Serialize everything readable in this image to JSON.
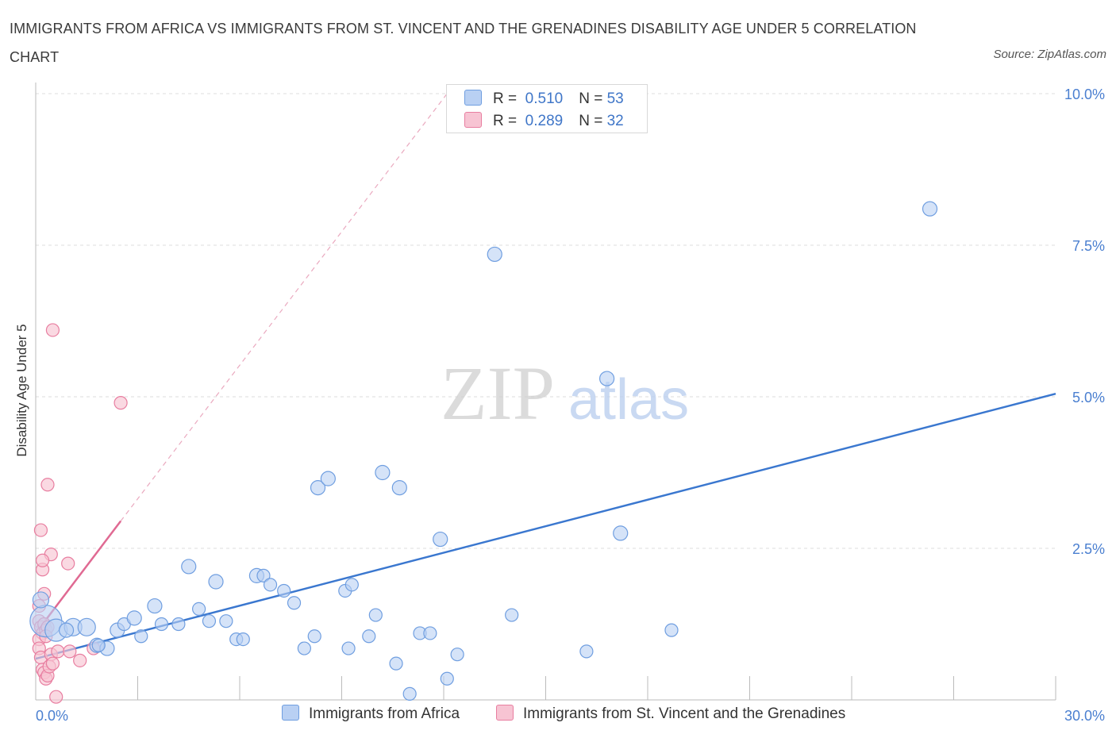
{
  "title": "IMMIGRANTS FROM AFRICA VS IMMIGRANTS FROM ST. VINCENT AND THE GRENADINES DISABILITY AGE UNDER 5 CORRELATION CHART",
  "source": "Source: ZipAtlas.com",
  "colors": {
    "blue_fill": "#b9d0f3",
    "blue_stroke": "#6f9ee0",
    "blue_line": "#3a77cf",
    "pink_fill": "#f7c4d3",
    "pink_stroke": "#e87ea0",
    "pink_line": "#e06a93",
    "grid": "#dedede",
    "tick_text": "#4a7fd0"
  },
  "legend": {
    "rows": [
      {
        "r_label": "R =",
        "r_value": "0.510",
        "n_label": "N =",
        "n_value": "53",
        "color": "#b9d0f3"
      },
      {
        "r_label": "R =",
        "r_value": "0.289",
        "n_label": "N =",
        "n_value": "32",
        "color": "#f7c4d3"
      }
    ]
  },
  "bottom_legend": {
    "africa": "Immigrants from Africa",
    "svg": "Immigrants from St. Vincent and the Grenadines"
  },
  "watermark": {
    "zip": "ZIP",
    "atlas": "atlas"
  },
  "chart_data": {
    "type": "scatter",
    "title": "IMMIGRANTS FROM AFRICA VS IMMIGRANTS FROM ST. VINCENT AND THE GRENADINES DISABILITY AGE UNDER 5 CORRELATION CHART",
    "xlabel": "",
    "ylabel": "Disability Age Under 5",
    "xlim": [
      0,
      30
    ],
    "ylim": [
      0,
      10
    ],
    "x_tick_labels": [
      {
        "value": 0,
        "label": "0.0%"
      },
      {
        "value": 30,
        "label": "30.0%"
      }
    ],
    "y_tick_labels": [
      {
        "value": 2.5,
        "label": "2.5%"
      },
      {
        "value": 5.0,
        "label": "5.0%"
      },
      {
        "value": 7.5,
        "label": "7.5%"
      },
      {
        "value": 10.0,
        "label": "10.0%"
      }
    ],
    "grid": true,
    "legend_placement": "top-center",
    "series": [
      {
        "name": "Immigrants from Africa",
        "R": 0.51,
        "N": 53,
        "trend": {
          "x": [
            0,
            30
          ],
          "y": [
            0.68,
            5.05
          ]
        },
        "points": [
          {
            "x": 0.3,
            "y": 1.3,
            "s": 20
          },
          {
            "x": 0.6,
            "y": 1.15,
            "s": 14
          },
          {
            "x": 1.1,
            "y": 1.2,
            "s": 11
          },
          {
            "x": 1.5,
            "y": 1.2,
            "s": 11
          },
          {
            "x": 0.9,
            "y": 1.15,
            "s": 9
          },
          {
            "x": 1.8,
            "y": 0.9,
            "s": 9
          },
          {
            "x": 2.1,
            "y": 0.85,
            "s": 9
          },
          {
            "x": 2.4,
            "y": 1.15,
            "s": 9
          },
          {
            "x": 2.6,
            "y": 1.25,
            "s": 8
          },
          {
            "x": 2.9,
            "y": 1.35,
            "s": 9
          },
          {
            "x": 3.1,
            "y": 1.05,
            "s": 8
          },
          {
            "x": 3.5,
            "y": 1.55,
            "s": 9
          },
          {
            "x": 3.7,
            "y": 1.25,
            "s": 8
          },
          {
            "x": 4.2,
            "y": 1.25,
            "s": 8
          },
          {
            "x": 4.5,
            "y": 2.2,
            "s": 9
          },
          {
            "x": 4.8,
            "y": 1.5,
            "s": 8
          },
          {
            "x": 5.1,
            "y": 1.3,
            "s": 8
          },
          {
            "x": 5.3,
            "y": 1.95,
            "s": 9
          },
          {
            "x": 5.6,
            "y": 1.3,
            "s": 8
          },
          {
            "x": 5.9,
            "y": 1.0,
            "s": 8
          },
          {
            "x": 6.1,
            "y": 1.0,
            "s": 8
          },
          {
            "x": 6.5,
            "y": 2.05,
            "s": 9
          },
          {
            "x": 6.7,
            "y": 2.05,
            "s": 8
          },
          {
            "x": 6.9,
            "y": 1.9,
            "s": 8
          },
          {
            "x": 7.3,
            "y": 1.8,
            "s": 8
          },
          {
            "x": 7.6,
            "y": 1.6,
            "s": 8
          },
          {
            "x": 7.9,
            "y": 0.85,
            "s": 8
          },
          {
            "x": 8.2,
            "y": 1.05,
            "s": 8
          },
          {
            "x": 8.3,
            "y": 3.5,
            "s": 9
          },
          {
            "x": 8.6,
            "y": 3.65,
            "s": 9
          },
          {
            "x": 9.1,
            "y": 1.8,
            "s": 8
          },
          {
            "x": 9.2,
            "y": 0.85,
            "s": 8
          },
          {
            "x": 9.3,
            "y": 1.9,
            "s": 8
          },
          {
            "x": 9.8,
            "y": 1.05,
            "s": 8
          },
          {
            "x": 10.0,
            "y": 1.4,
            "s": 8
          },
          {
            "x": 10.2,
            "y": 3.75,
            "s": 9
          },
          {
            "x": 10.7,
            "y": 3.5,
            "s": 9
          },
          {
            "x": 10.6,
            "y": 0.6,
            "s": 8
          },
          {
            "x": 11.0,
            "y": 0.1,
            "s": 8
          },
          {
            "x": 11.3,
            "y": 1.1,
            "s": 8
          },
          {
            "x": 11.6,
            "y": 1.1,
            "s": 8
          },
          {
            "x": 11.9,
            "y": 2.65,
            "s": 9
          },
          {
            "x": 12.1,
            "y": 0.35,
            "s": 8
          },
          {
            "x": 12.4,
            "y": 0.75,
            "s": 8
          },
          {
            "x": 13.5,
            "y": 7.35,
            "s": 9
          },
          {
            "x": 14.0,
            "y": 1.4,
            "s": 8
          },
          {
            "x": 16.2,
            "y": 0.8,
            "s": 8
          },
          {
            "x": 16.8,
            "y": 5.3,
            "s": 9
          },
          {
            "x": 17.2,
            "y": 2.75,
            "s": 9
          },
          {
            "x": 18.7,
            "y": 1.15,
            "s": 8
          },
          {
            "x": 26.3,
            "y": 8.1,
            "s": 9
          },
          {
            "x": 0.15,
            "y": 1.65,
            "s": 10
          },
          {
            "x": 1.85,
            "y": 0.9,
            "s": 8
          }
        ]
      },
      {
        "name": "Immigrants from St. Vincent and the Grenadines",
        "R": 0.289,
        "N": 32,
        "trend": {
          "x": [
            0,
            2.5
          ],
          "y": [
            1.1,
            2.95
          ]
        },
        "trend_extension": {
          "x": [
            2.5,
            12.1
          ],
          "y": [
            2.95,
            10.0
          ]
        },
        "points": [
          {
            "x": 0.1,
            "y": 1.3
          },
          {
            "x": 0.15,
            "y": 1.2
          },
          {
            "x": 0.2,
            "y": 1.1
          },
          {
            "x": 0.1,
            "y": 1.0
          },
          {
            "x": 0.25,
            "y": 1.25
          },
          {
            "x": 0.3,
            "y": 1.15
          },
          {
            "x": 0.35,
            "y": 1.2
          },
          {
            "x": 0.1,
            "y": 0.85
          },
          {
            "x": 0.15,
            "y": 0.7
          },
          {
            "x": 0.2,
            "y": 0.5
          },
          {
            "x": 0.25,
            "y": 0.45
          },
          {
            "x": 0.3,
            "y": 0.35
          },
          {
            "x": 0.35,
            "y": 0.4
          },
          {
            "x": 0.4,
            "y": 0.55
          },
          {
            "x": 0.45,
            "y": 0.75
          },
          {
            "x": 0.5,
            "y": 0.6
          },
          {
            "x": 0.65,
            "y": 0.8
          },
          {
            "x": 1.0,
            "y": 0.8
          },
          {
            "x": 1.3,
            "y": 0.65
          },
          {
            "x": 0.2,
            "y": 2.15
          },
          {
            "x": 0.15,
            "y": 2.8
          },
          {
            "x": 0.35,
            "y": 3.55
          },
          {
            "x": 0.45,
            "y": 2.4
          },
          {
            "x": 0.2,
            "y": 2.3
          },
          {
            "x": 0.25,
            "y": 1.75
          },
          {
            "x": 0.5,
            "y": 6.1
          },
          {
            "x": 2.5,
            "y": 4.9
          },
          {
            "x": 0.95,
            "y": 2.25
          },
          {
            "x": 0.6,
            "y": 0.05
          },
          {
            "x": 0.1,
            "y": 1.55
          },
          {
            "x": 1.7,
            "y": 0.85
          },
          {
            "x": 0.3,
            "y": 1.05
          }
        ]
      }
    ]
  }
}
